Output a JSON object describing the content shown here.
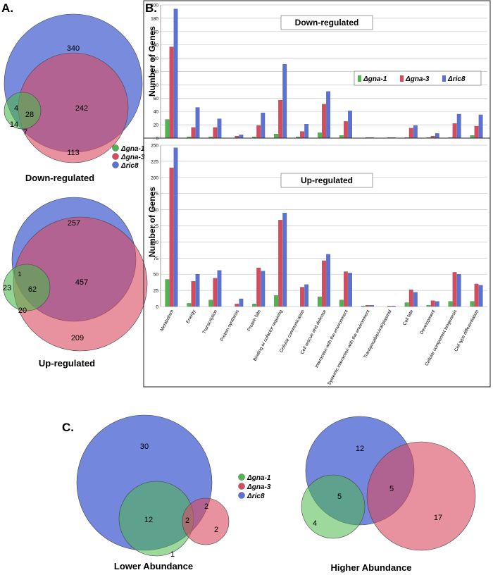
{
  "panel_labels": {
    "a": "A.",
    "b": "B.",
    "c": "C."
  },
  "colors": {
    "green": "#4cb84c",
    "red": "#d94a5f",
    "blue": "#5a72d6",
    "grid": "#c8c8c8"
  },
  "legend_labels": [
    "Δgna-1",
    "Δgna-3",
    "Δric8"
  ],
  "chart_data": [
    {
      "type": "venn",
      "title": "Down-regulated",
      "sets": [
        "Δgna-1",
        "Δgna-3",
        "Δric8"
      ],
      "regions": {
        "ric8_only": "340",
        "gna3_ric8": "242",
        "gna3_only": "113",
        "gna1_ric8": "4",
        "gna1_only": "14",
        "all_three": "28",
        "gna1_gna3": "7"
      }
    },
    {
      "type": "venn",
      "title": "Up-regulated",
      "sets": [
        "Δgna-1",
        "Δgna-3",
        "Δric8"
      ],
      "regions": {
        "ric8_only": "257",
        "gna3_ric8": "457",
        "gna3_only": "209",
        "gna1_ric8": "1",
        "gna1_only": "23",
        "all_three": "62",
        "gna1_gna3": "20"
      }
    },
    {
      "type": "bar",
      "title": "Down-regulated",
      "ylabel": "Number of Genes",
      "ylim": [
        0,
        200
      ],
      "yticks": [
        0,
        20,
        40,
        60,
        80,
        100,
        120,
        140,
        160,
        180,
        200
      ],
      "categories": [
        "Metabolism",
        "Energy",
        "Transcription",
        "Protein synthesis",
        "Protein fate",
        "Binding or cofactor requiring",
        "Cellular communication",
        "Cell rescue and defense",
        "Interaction with the environment",
        "Systemic interaction with the environment",
        "Transposable/viral/plasmid",
        "Cell fate",
        "Development",
        "Cellular component biogenesis",
        "Cell type differentiation"
      ],
      "series": [
        {
          "name": "Δgna-1",
          "values": [
            28,
            2,
            2,
            0,
            2,
            6,
            2,
            8,
            4,
            0,
            0,
            1,
            1,
            1,
            4
          ]
        },
        {
          "name": "Δgna-3",
          "values": [
            137,
            16,
            16,
            3,
            19,
            57,
            10,
            51,
            25,
            1,
            1,
            15,
            3,
            22,
            18
          ]
        },
        {
          "name": "Δric8",
          "values": [
            194,
            46,
            29,
            5,
            38,
            111,
            21,
            70,
            41,
            1,
            1,
            19,
            7,
            36,
            35
          ]
        }
      ],
      "legend": "top-right"
    },
    {
      "type": "bar",
      "title": "Up-regulated",
      "ylabel": "Number of Genes",
      "ylim": [
        0,
        250
      ],
      "yticks": [
        0,
        25,
        50,
        75,
        100,
        125,
        150,
        175,
        200,
        225,
        250
      ],
      "categories": [
        "Metabolism",
        "Energy",
        "Transcription",
        "Protein synthesis",
        "Protein fate",
        "Binding or cofactor requiring",
        "Cellular communication",
        "Cell rescue and defense",
        "Interaction with the environment",
        "Systemic interaction with the environment",
        "Transposable/viral/plasmid",
        "Cell fate",
        "Development",
        "Cellular component biogenesis",
        "Cell type differentiation"
      ],
      "series": [
        {
          "name": "Δgna-1",
          "values": [
            42,
            5,
            10,
            0,
            4,
            17,
            0,
            15,
            10,
            1,
            0,
            6,
            2,
            8,
            8
          ]
        },
        {
          "name": "Δgna-3",
          "values": [
            215,
            39,
            44,
            4,
            60,
            134,
            30,
            71,
            54,
            2,
            1,
            26,
            9,
            53,
            35
          ]
        },
        {
          "name": "Δric8",
          "values": [
            246,
            50,
            56,
            12,
            55,
            145,
            34,
            81,
            52,
            2,
            1,
            22,
            8,
            50,
            33
          ]
        }
      ]
    },
    {
      "type": "venn",
      "title": "Lower Abundance",
      "sets": [
        "Δgna-1",
        "Δgna-3",
        "Δric8"
      ],
      "regions": {
        "ric8_only": "30",
        "gna1_ric8": "12",
        "all_three": "2",
        "gna3_ric8": "2",
        "gna3_only": "2",
        "gna1_only": "1"
      }
    },
    {
      "type": "venn",
      "title": "Higher Abundance",
      "sets": [
        "Δgna-1",
        "Δgna-3",
        "Δric8"
      ],
      "regions": {
        "ric8_only": "12",
        "gna1_ric8": "5",
        "gna3_ric8": "5",
        "gna1_only": "4",
        "gna3_only": "17"
      }
    }
  ]
}
